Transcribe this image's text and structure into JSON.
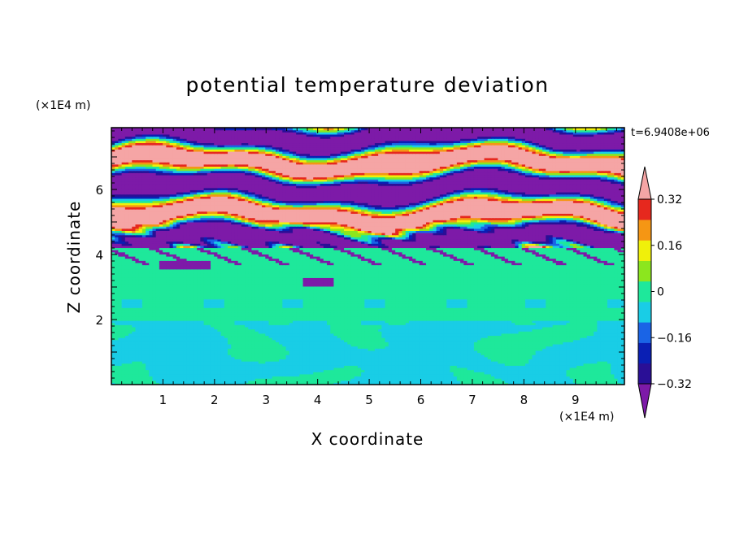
{
  "chart_data": {
    "type": "heatmap",
    "title": "potential temperature deviation",
    "xlabel": "X coordinate",
    "ylabel": "Z coordinate",
    "x_unit": "(×1E4 m)",
    "y_unit": "(×1E4 m)",
    "time_label": "t=6.9408e+06",
    "xlim": [
      0,
      9.95
    ],
    "ylim": [
      0,
      7.9
    ],
    "x_ticks": [
      "1",
      "2",
      "3",
      "4",
      "5",
      "6",
      "7",
      "8",
      "9"
    ],
    "y_ticks": [
      "2",
      "4",
      "6"
    ],
    "grid": false,
    "colorbar": {
      "position": "right",
      "tick_labels": [
        "0.32",
        "0.16",
        "0",
        "−0.16",
        "−0.32"
      ],
      "tick_values": [
        0.32,
        0.16,
        0,
        -0.16,
        -0.32
      ],
      "levels": [
        -0.4,
        -0.32,
        -0.24,
        -0.16,
        -0.08,
        0,
        0.08,
        0.16,
        0.24,
        0.32,
        0.4
      ],
      "colors": [
        "#7d1aa8",
        "#2a0f96",
        "#0a1fb4",
        "#1a64e6",
        "#19cde6",
        "#1ee89b",
        "#8ce61e",
        "#f0f00a",
        "#f59614",
        "#e6281e",
        "#f5a5a5"
      ]
    },
    "layers": [
      {
        "range": [
          0,
          2.0
        ],
        "description": "lower layer",
        "value": 0
      },
      {
        "range": [
          2.0,
          4.2
        ],
        "description": "middle layer",
        "value": 0.04
      },
      {
        "range": [
          4.2,
          7.9
        ],
        "description": "upper layer",
        "value": 0.4
      }
    ]
  }
}
